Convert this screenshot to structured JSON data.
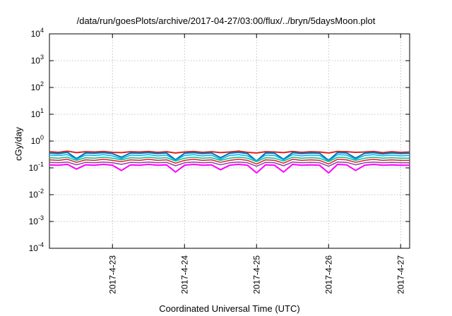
{
  "chart_data": {
    "type": "line",
    "title": "/data/run/goesPlots/archive/2017-04-27/03:00/flux/../bryn/5daysMoon.plot",
    "xlabel": "Coordinated Universal Time (UTC)",
    "ylabel": "cGy/day",
    "y_scale": "log",
    "ylim": [
      0.0001,
      10000
    ],
    "y_ticks": [
      {
        "base": "10",
        "exp": "-4",
        "value": 0.0001
      },
      {
        "base": "10",
        "exp": "-3",
        "value": 0.001
      },
      {
        "base": "10",
        "exp": "-2",
        "value": 0.01
      },
      {
        "base": "10",
        "exp": "-1",
        "value": 0.1
      },
      {
        "base": "10",
        "exp": "0",
        "value": 1
      },
      {
        "base": "10",
        "exp": "1",
        "value": 10
      },
      {
        "base": "10",
        "exp": "2",
        "value": 100
      },
      {
        "base": "10",
        "exp": "3",
        "value": 1000
      },
      {
        "base": "10",
        "exp": "4",
        "value": 10000
      }
    ],
    "x_scale": "time",
    "xlim": [
      "2017-04-22 03:00",
      "2017-04-27 03:00"
    ],
    "x_ticks": [
      "2017-4-23",
      "2017-4-24",
      "2017-4-25",
      "2017-4-26",
      "2017-4-27"
    ],
    "x_tick_times": [
      "2017-04-23 00:00",
      "2017-04-24 00:00",
      "2017-04-25 00:00",
      "2017-04-26 00:00",
      "2017-04-27 00:00"
    ],
    "grid": true,
    "x_sample_times": [
      "2017-04-22 03:00",
      "2017-04-22 06:00",
      "2017-04-22 09:00",
      "2017-04-22 12:00",
      "2017-04-22 15:00",
      "2017-04-22 18:00",
      "2017-04-22 21:00",
      "2017-04-23 00:00",
      "2017-04-23 03:00",
      "2017-04-23 06:00",
      "2017-04-23 09:00",
      "2017-04-23 12:00",
      "2017-04-23 15:00",
      "2017-04-23 18:00",
      "2017-04-23 21:00",
      "2017-04-24 00:00",
      "2017-04-24 03:00",
      "2017-04-24 06:00",
      "2017-04-24 09:00",
      "2017-04-24 12:00",
      "2017-04-24 15:00",
      "2017-04-24 18:00",
      "2017-04-24 21:00",
      "2017-04-25 00:00",
      "2017-04-25 03:00",
      "2017-04-25 06:00",
      "2017-04-25 09:00",
      "2017-04-25 12:00",
      "2017-04-25 15:00",
      "2017-04-25 18:00",
      "2017-04-25 21:00",
      "2017-04-26 00:00",
      "2017-04-26 03:00",
      "2017-04-26 06:00",
      "2017-04-26 09:00",
      "2017-04-26 12:00",
      "2017-04-26 15:00",
      "2017-04-26 18:00",
      "2017-04-26 21:00",
      "2017-04-27 00:00",
      "2017-04-27 03:00"
    ],
    "series": [
      {
        "color": "#e0211f",
        "width": 2,
        "values": [
          0.4,
          0.38,
          0.42,
          0.37,
          0.4,
          0.39,
          0.41,
          0.38,
          0.37,
          0.4,
          0.39,
          0.41,
          0.38,
          0.4,
          0.36,
          0.39,
          0.41,
          0.38,
          0.4,
          0.37,
          0.39,
          0.42,
          0.38,
          0.36,
          0.4,
          0.39,
          0.37,
          0.41,
          0.38,
          0.4,
          0.39,
          0.36,
          0.41,
          0.4,
          0.38,
          0.39,
          0.41,
          0.37,
          0.4,
          0.38,
          0.39
        ]
      },
      {
        "color": "#0072b2",
        "width": 2,
        "values": [
          0.36,
          0.34,
          0.38,
          0.22,
          0.36,
          0.35,
          0.37,
          0.34,
          0.25,
          0.36,
          0.35,
          0.37,
          0.34,
          0.36,
          0.2,
          0.35,
          0.37,
          0.34,
          0.36,
          0.24,
          0.35,
          0.38,
          0.34,
          0.18,
          0.36,
          0.35,
          0.21,
          0.37,
          0.34,
          0.36,
          0.35,
          0.19,
          0.37,
          0.36,
          0.23,
          0.35,
          0.37,
          0.33,
          0.36,
          0.34,
          0.35
        ]
      },
      {
        "color": "#00b0f0",
        "width": 1.5,
        "values": [
          0.3,
          0.29,
          0.31,
          0.21,
          0.3,
          0.29,
          0.31,
          0.28,
          0.22,
          0.3,
          0.29,
          0.31,
          0.28,
          0.3,
          0.19,
          0.29,
          0.31,
          0.28,
          0.3,
          0.21,
          0.29,
          0.31,
          0.28,
          0.18,
          0.3,
          0.29,
          0.2,
          0.31,
          0.28,
          0.3,
          0.29,
          0.18,
          0.31,
          0.3,
          0.21,
          0.29,
          0.31,
          0.28,
          0.3,
          0.28,
          0.29
        ]
      },
      {
        "color": "#00c090",
        "width": 1.5,
        "values": [
          0.24,
          0.23,
          0.25,
          0.19,
          0.24,
          0.23,
          0.25,
          0.23,
          0.2,
          0.24,
          0.23,
          0.25,
          0.23,
          0.24,
          0.18,
          0.23,
          0.25,
          0.23,
          0.24,
          0.19,
          0.23,
          0.25,
          0.23,
          0.17,
          0.24,
          0.23,
          0.18,
          0.25,
          0.23,
          0.24,
          0.23,
          0.17,
          0.25,
          0.24,
          0.19,
          0.23,
          0.25,
          0.23,
          0.24,
          0.23,
          0.23
        ]
      },
      {
        "color": "#e0211f",
        "width": 1.5,
        "values": [
          0.2,
          0.19,
          0.21,
          0.16,
          0.2,
          0.19,
          0.21,
          0.19,
          0.17,
          0.2,
          0.19,
          0.21,
          0.19,
          0.2,
          0.15,
          0.19,
          0.21,
          0.19,
          0.2,
          0.16,
          0.19,
          0.21,
          0.19,
          0.14,
          0.2,
          0.19,
          0.15,
          0.21,
          0.19,
          0.2,
          0.19,
          0.14,
          0.21,
          0.2,
          0.16,
          0.19,
          0.21,
          0.19,
          0.2,
          0.19,
          0.19
        ]
      },
      {
        "color": "#8b3fa8",
        "width": 1.5,
        "values": [
          0.16,
          0.155,
          0.165,
          0.13,
          0.16,
          0.155,
          0.165,
          0.155,
          0.135,
          0.16,
          0.155,
          0.165,
          0.155,
          0.16,
          0.12,
          0.155,
          0.165,
          0.155,
          0.16,
          0.13,
          0.155,
          0.165,
          0.155,
          0.115,
          0.16,
          0.155,
          0.12,
          0.165,
          0.155,
          0.16,
          0.155,
          0.115,
          0.165,
          0.16,
          0.13,
          0.155,
          0.165,
          0.155,
          0.16,
          0.155,
          0.155
        ]
      },
      {
        "color": "#ff00ff",
        "width": 2,
        "values": [
          0.13,
          0.125,
          0.135,
          0.09,
          0.13,
          0.125,
          0.135,
          0.125,
          0.08,
          0.13,
          0.125,
          0.135,
          0.125,
          0.13,
          0.07,
          0.125,
          0.135,
          0.125,
          0.13,
          0.085,
          0.125,
          0.135,
          0.125,
          0.065,
          0.13,
          0.125,
          0.07,
          0.135,
          0.125,
          0.13,
          0.125,
          0.065,
          0.135,
          0.13,
          0.08,
          0.125,
          0.135,
          0.125,
          0.13,
          0.125,
          0.125
        ]
      }
    ]
  }
}
